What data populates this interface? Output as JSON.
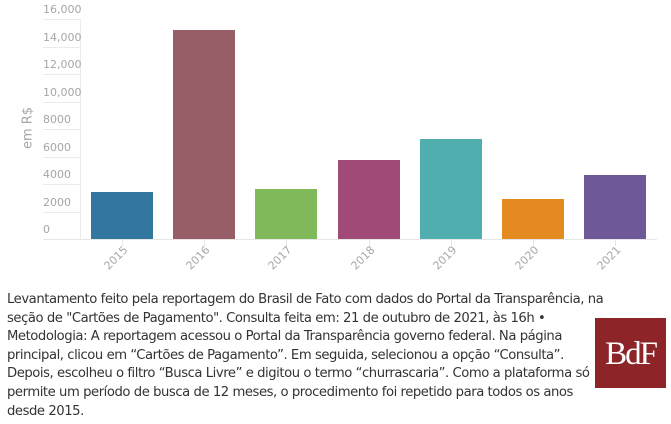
{
  "chart_data": {
    "type": "bar",
    "title": "",
    "xlabel": "",
    "ylabel": "em R$",
    "ylim": [
      0,
      16000
    ],
    "grid": true,
    "legend": null,
    "categories": [
      "2015",
      "2016",
      "2017",
      "2018",
      "2019",
      "2020",
      "2021"
    ],
    "values": [
      3430,
      15180,
      3650,
      5740,
      7280,
      2940,
      4690
    ],
    "colors": [
      "#33779f",
      "#985e68",
      "#80b95a",
      "#a04a78",
      "#50aeae",
      "#e38a21",
      "#6e5898"
    ],
    "y_ticks": [
      "0",
      "2000",
      "4000",
      "6000",
      "8000",
      "10,000",
      "12,000",
      "14,000",
      "16,000"
    ],
    "y_tick_values": [
      0,
      2000,
      4000,
      6000,
      8000,
      10000,
      12000,
      14000,
      16000
    ]
  },
  "caption": {
    "lines": [
      "Levantamento feito pela reportagem do Brasil de Fato com dados do Portal da Transparência, na",
      "seção de \"Cartões de Pagamento\". Consulta feita em: 21 de outubro de 2021, às 16h •",
      "Metodologia: A reportagem acessou o Portal da Transparência governo federal. Na página",
      "principal, clicou em “Cartões de Pagamento”. Em seguida, selecionou a opção “Consulta”.",
      "Depois, escolheu o filtro “Busca Livre” e digitou o termo “churrascaria”. Como a plataforma só",
      "permite um período de busca de 12 meses, o procedimento foi repetido para todos os anos",
      "desde 2015."
    ]
  },
  "logo": {
    "text": "BdF",
    "background": "#8d2428"
  }
}
